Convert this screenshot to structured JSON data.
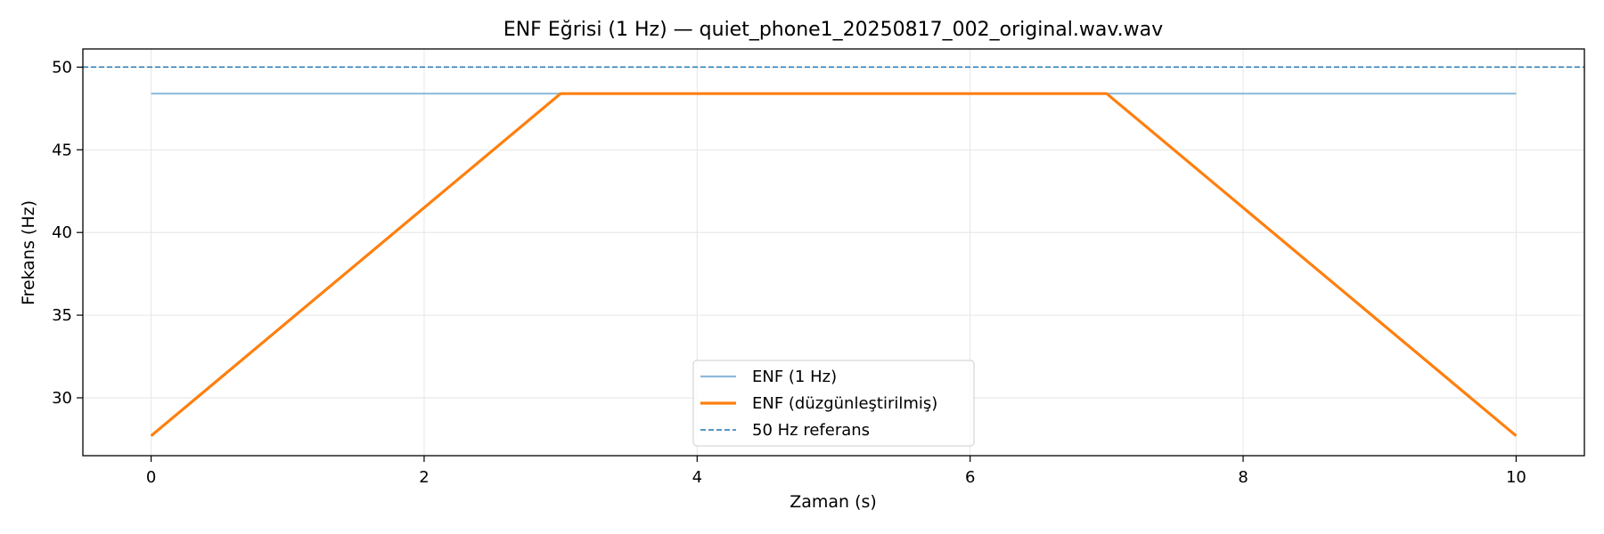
{
  "chart_data": {
    "type": "line",
    "title": "ENF Eğrisi (1 Hz) — quiet_phone1_20250817_002_original.wav.wav",
    "xlabel": "Zaman (s)",
    "ylabel": "Frekans (Hz)",
    "xlim": [
      -0.5,
      10.5
    ],
    "ylim": [
      26.5,
      51.1
    ],
    "xticks": [
      0,
      2,
      4,
      6,
      8,
      10
    ],
    "yticks": [
      30,
      35,
      40,
      45,
      50
    ],
    "grid": true,
    "legend_position": "bottom-center",
    "series": [
      {
        "name": "ENF (1 Hz)",
        "x": [
          0,
          10
        ],
        "y": [
          48.4,
          48.4
        ],
        "color": "#8fbbdb",
        "style": "solid"
      },
      {
        "name": "ENF (düzgünleştirilmiş)",
        "x": [
          0,
          3,
          7,
          10
        ],
        "y": [
          27.7,
          48.4,
          48.4,
          27.7
        ],
        "color": "#ff7f0e",
        "style": "solid"
      }
    ],
    "reference_line": {
      "name": "50 Hz referans",
      "y": 50,
      "color": "#1f77b4",
      "style": "dashed"
    }
  }
}
